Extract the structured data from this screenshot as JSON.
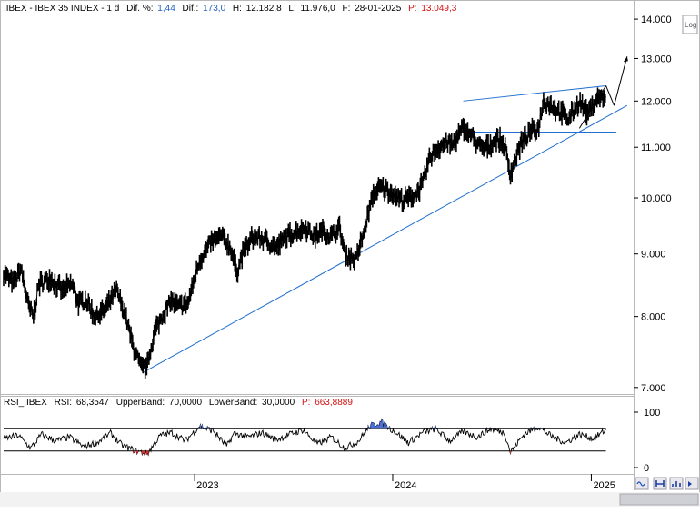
{
  "header": {
    "symbol": ".IBEX - IBEX 35 INDEX - 1 d",
    "dif_pct_label": "Dif. %:",
    "dif_pct_value": "1,44",
    "dif_label": "Dif.:",
    "dif_value": "173,0",
    "h_label": "H:",
    "h_value": "12.182,8",
    "l_label": "L:",
    "l_value": "11.976,0",
    "f_label": "F:",
    "f_value": "28-01-2025",
    "p_label": "P:",
    "p_value": "13.049,3"
  },
  "rsi_header": {
    "name": "RSI_.IBEX",
    "rsi_label": "RSI:",
    "rsi_value": "68,3547",
    "upper_label": "UpperBand:",
    "upper_value": "70,0000",
    "lower_label": "LowerBand:",
    "lower_value": "30,0000",
    "p_label": "P:",
    "p_value": "663,8889"
  },
  "log_button": "Log",
  "colors": {
    "price": "#000000",
    "trend": "#1f6fd0",
    "rsi_line": "#000000",
    "rsi_over": "#4a6fd8",
    "rsi_under": "#d03030",
    "frame": "#b8b8b8"
  },
  "chart_data": [
    {
      "type": "line",
      "scale": "log",
      "ylim": [
        6950,
        14050
      ],
      "yticks": [
        "14.000",
        "13.000",
        "12.000",
        "11.000",
        "10.000",
        "9.000",
        "8.000",
        "7.000"
      ],
      "ytick_values": [
        14000,
        13000,
        12000,
        11000,
        10000,
        9000,
        8000,
        7000
      ],
      "xlim": [
        "2022-01-14",
        "2025-03-20"
      ],
      "xticks": [
        "2023",
        "2024",
        "2025"
      ],
      "xtick_dates": [
        "2023-01-01",
        "2024-01-01",
        "2025-01-01"
      ],
      "series": [
        {
          "x": [
            "2022-01-14",
            "2022-02-01",
            "2022-02-15",
            "2022-03-01",
            "2022-03-10",
            "2022-03-20",
            "2022-04-10",
            "2022-05-01",
            "2022-05-20",
            "2022-06-01",
            "2022-06-15",
            "2022-07-01",
            "2022-07-20",
            "2022-08-10",
            "2022-08-25",
            "2022-09-10",
            "2022-09-25",
            "2022-10-06",
            "2022-10-20",
            "2022-11-05",
            "2022-11-20",
            "2022-12-01",
            "2022-12-20",
            "2023-01-10",
            "2023-02-01",
            "2023-02-20",
            "2023-03-08",
            "2023-03-20",
            "2023-04-01",
            "2023-04-20",
            "2023-05-10",
            "2023-05-31",
            "2023-06-20",
            "2023-07-10",
            "2023-07-25",
            "2023-08-10",
            "2023-08-25",
            "2023-09-10",
            "2023-09-25",
            "2023-10-05",
            "2023-10-25",
            "2023-11-10",
            "2023-11-25",
            "2023-12-10",
            "2023-12-31",
            "2024-01-20",
            "2024-02-10",
            "2024-02-25",
            "2024-03-10",
            "2024-03-25",
            "2024-04-10",
            "2024-04-20",
            "2024-05-10",
            "2024-05-25",
            "2024-06-10",
            "2024-06-25",
            "2024-07-10",
            "2024-07-25",
            "2024-08-05",
            "2024-08-15",
            "2024-08-25",
            "2024-09-10",
            "2024-09-25",
            "2024-10-05",
            "2024-10-20",
            "2024-11-05",
            "2024-11-20",
            "2024-12-10",
            "2024-12-25",
            "2025-01-10",
            "2025-01-28"
          ],
          "values": [
            8700,
            8500,
            8750,
            8150,
            8000,
            8500,
            8600,
            8400,
            8500,
            8200,
            8250,
            8000,
            8100,
            8400,
            8050,
            7550,
            7250,
            7300,
            7800,
            8050,
            8250,
            8150,
            8200,
            8900,
            9200,
            9300,
            9100,
            8700,
            9050,
            9300,
            9250,
            9100,
            9300,
            9400,
            9450,
            9300,
            9400,
            9300,
            9450,
            9000,
            8900,
            9400,
            10050,
            10200,
            10100,
            9950,
            10050,
            10250,
            10800,
            11000,
            11100,
            11050,
            11400,
            11250,
            11000,
            11000,
            11200,
            11050,
            10450,
            10800,
            11100,
            11300,
            11400,
            12000,
            11900,
            11750,
            11600,
            12000,
            11700,
            12050,
            12100
          ]
        }
      ]
    },
    {
      "type": "line",
      "ylim": [
        0,
        100
      ],
      "yticks": [
        "100",
        "0"
      ],
      "ytick_values": [
        100,
        0
      ],
      "bands": [
        70,
        30
      ],
      "xlim": [
        "2022-01-14",
        "2025-03-20"
      ],
      "series": [
        {
          "x": [
            "2022-01-14",
            "2022-02-10",
            "2022-03-05",
            "2022-03-25",
            "2022-04-20",
            "2022-05-15",
            "2022-06-10",
            "2022-07-05",
            "2022-07-30",
            "2022-08-20",
            "2022-09-15",
            "2022-10-06",
            "2022-10-30",
            "2022-11-20",
            "2022-12-15",
            "2023-01-10",
            "2023-02-05",
            "2023-03-01",
            "2023-03-15",
            "2023-04-10",
            "2023-05-05",
            "2023-05-31",
            "2023-06-25",
            "2023-07-20",
            "2023-08-15",
            "2023-09-10",
            "2023-10-05",
            "2023-10-30",
            "2023-11-20",
            "2023-12-10",
            "2024-01-05",
            "2024-01-30",
            "2024-02-25",
            "2024-03-20",
            "2024-04-15",
            "2024-05-10",
            "2024-06-05",
            "2024-06-30",
            "2024-07-25",
            "2024-08-05",
            "2024-08-30",
            "2024-09-25",
            "2024-10-20",
            "2024-11-15",
            "2024-12-10",
            "2025-01-05",
            "2025-01-28"
          ],
          "values": [
            52,
            58,
            35,
            60,
            48,
            55,
            38,
            45,
            62,
            40,
            30,
            25,
            58,
            63,
            48,
            75,
            66,
            38,
            62,
            55,
            63,
            50,
            60,
            68,
            42,
            55,
            35,
            48,
            75,
            82,
            65,
            45,
            63,
            70,
            48,
            65,
            55,
            70,
            63,
            28,
            60,
            74,
            56,
            45,
            60,
            52,
            68
          ]
        }
      ]
    }
  ]
}
